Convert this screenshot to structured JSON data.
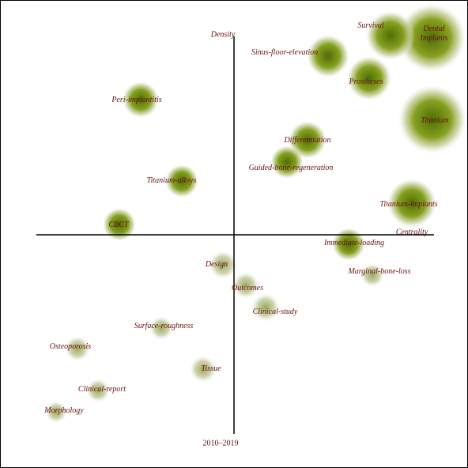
{
  "axes": {
    "y_label": "Density",
    "x_label": "Centrality",
    "period": "2010–2019"
  },
  "nodes": [
    {
      "label": "Dental Implants"
    },
    {
      "label": "Survival"
    },
    {
      "label": "Sinus-floor-elevation"
    },
    {
      "label": "Prostheses"
    },
    {
      "label": "Titanium"
    },
    {
      "label": "Peri-implantitis"
    },
    {
      "label": "Differentiation"
    },
    {
      "label": "Guided-bone-regeneration"
    },
    {
      "label": "Titanium-alloys"
    },
    {
      "label": "Titanium-implants"
    },
    {
      "label": "CBCT"
    },
    {
      "label": "Immediate-loading"
    },
    {
      "label": "Marginal-bone-loss"
    },
    {
      "label": "Design"
    },
    {
      "label": "Outcomes"
    },
    {
      "label": "Clinical-study"
    },
    {
      "label": "Surface-roughness"
    },
    {
      "label": "Osteoporosis"
    },
    {
      "label": "Tissue"
    },
    {
      "label": "Clinical-report"
    },
    {
      "label": "Morphology"
    }
  ]
}
